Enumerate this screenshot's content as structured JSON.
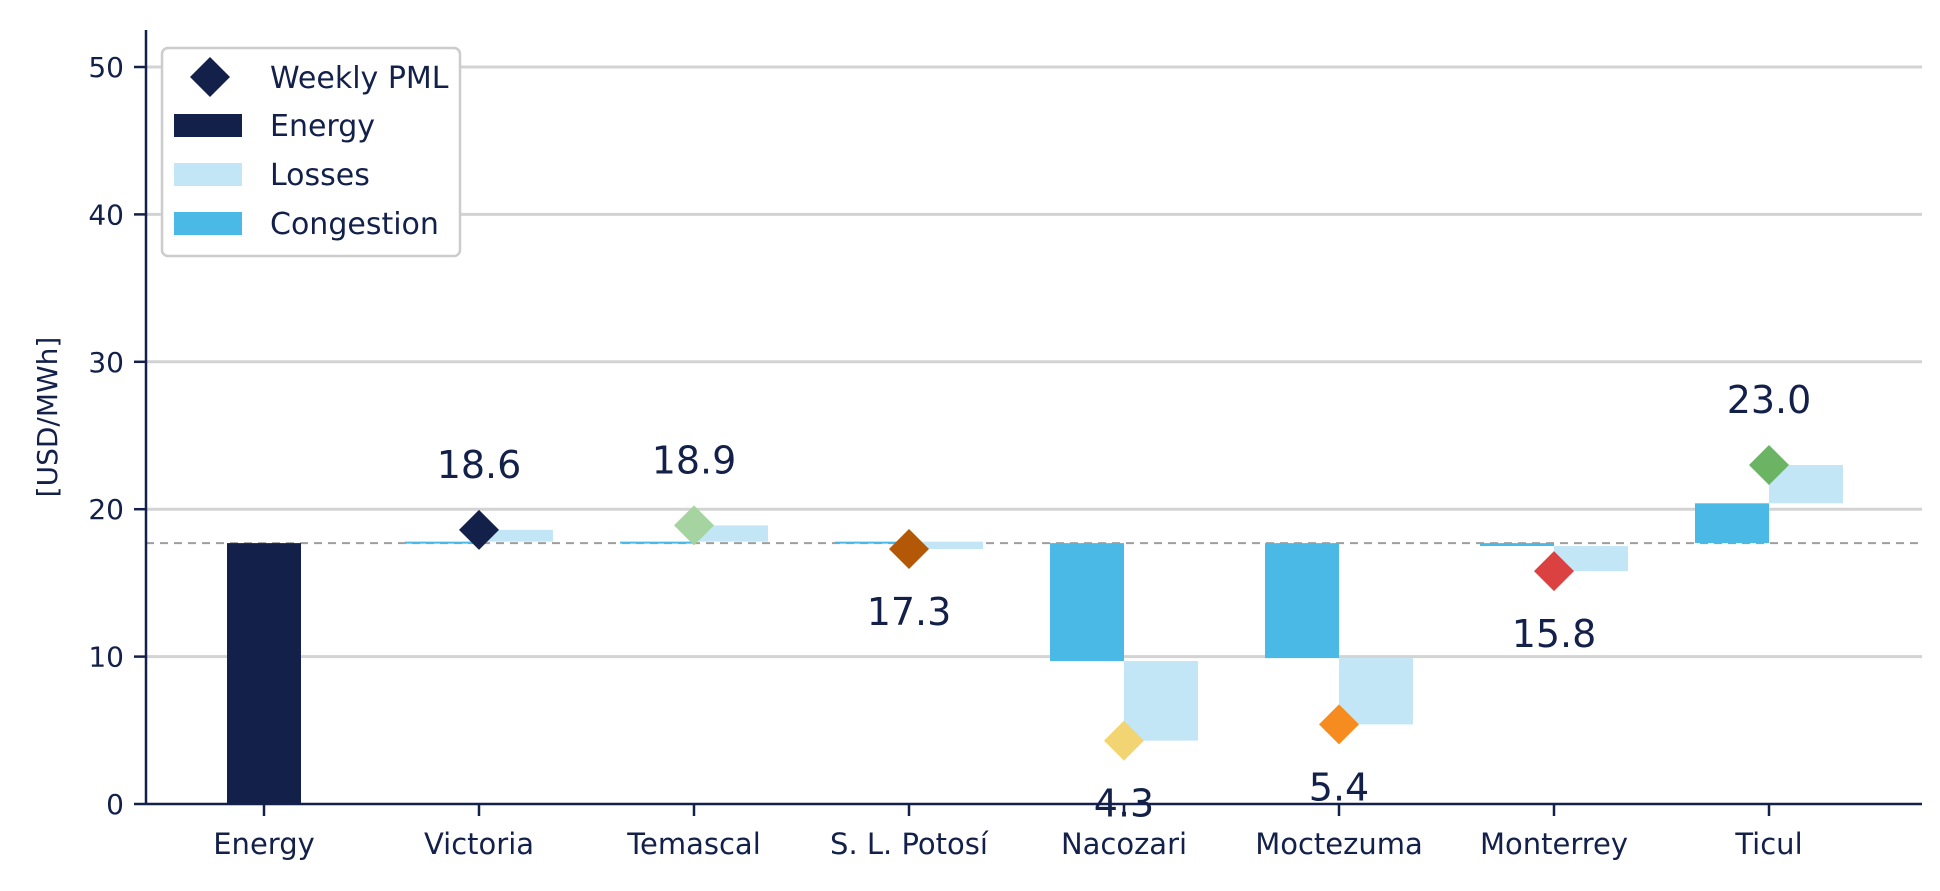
{
  "chart_data": {
    "type": "bar",
    "chart_style": "waterfall",
    "ylabel": "[USD/MWh]",
    "ylim": [
      0,
      52
    ],
    "yticks": [
      0,
      10,
      20,
      30,
      40,
      50
    ],
    "grid": true,
    "legend_position": "top-left",
    "reference_line": {
      "y": 17.7,
      "style": "dashed",
      "color": "#9e9e9e"
    },
    "legend": [
      {
        "key": "pml",
        "label": "Weekly PML",
        "marker": "diamond",
        "color": "#13214a"
      },
      {
        "key": "energy",
        "label": "Energy",
        "marker": "bar",
        "color": "#13214a"
      },
      {
        "key": "losses",
        "label": "Losses",
        "marker": "bar",
        "color": "#c2e6f5"
      },
      {
        "key": "congestion",
        "label": "Congestion",
        "marker": "bar",
        "color": "#4ab9e6"
      }
    ],
    "categories": [
      "Energy",
      "Victoria",
      "Temascal",
      "S. L. Potosí",
      "Nacozari",
      "Moctezuma",
      "Monterrey",
      "Ticul"
    ],
    "energy": 17.7,
    "nodes": [
      {
        "name": "Victoria",
        "congestion": 0.1,
        "losses": 0.8,
        "pml": 18.6,
        "pml_label": "18.6",
        "color": "#13214a",
        "label_position": "above"
      },
      {
        "name": "Temascal",
        "congestion": 0.1,
        "losses": 1.1,
        "pml": 18.9,
        "pml_label": "18.9",
        "color": "#a6d4a0",
        "label_position": "above"
      },
      {
        "name": "S. L. Potosí",
        "congestion": 0.1,
        "losses": -0.5,
        "pml": 17.3,
        "pml_label": "17.3",
        "color": "#b35806",
        "label_position": "below"
      },
      {
        "name": "Nacozari",
        "congestion": -8.0,
        "losses": -5.4,
        "pml": 4.3,
        "pml_label": "4.3",
        "color": "#f2d572",
        "label_position": "below"
      },
      {
        "name": "Moctezuma",
        "congestion": -7.8,
        "losses": -4.5,
        "pml": 5.4,
        "pml_label": "5.4",
        "color": "#f68c1f",
        "label_position": "below"
      },
      {
        "name": "Monterrey",
        "congestion": -0.2,
        "losses": -1.7,
        "pml": 15.8,
        "pml_label": "15.8",
        "color": "#dc4141",
        "label_position": "below"
      },
      {
        "name": "Ticul",
        "congestion": 2.7,
        "losses": 2.6,
        "pml": 23.0,
        "pml_label": "23.0",
        "color": "#6ab464",
        "label_position": "above"
      }
    ]
  }
}
